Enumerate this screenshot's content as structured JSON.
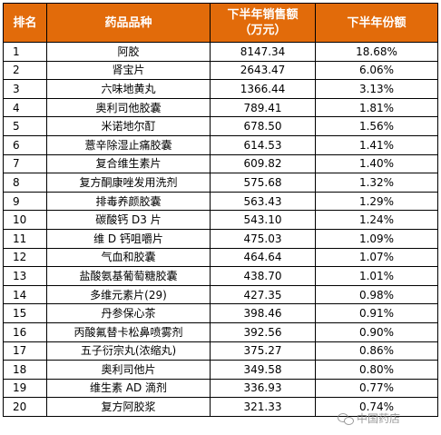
{
  "table": {
    "headers": {
      "rank": "排名",
      "name": "药品品种",
      "sales_line1": "下半年销售额",
      "sales_line2": "（万元）",
      "share": "下半年份额"
    },
    "rows": [
      {
        "rank": "1",
        "name": "阿胶",
        "sales": "8147.34",
        "share": "18.68%"
      },
      {
        "rank": "2",
        "name": "肾宝片",
        "sales": "2643.47",
        "share": "6.06%"
      },
      {
        "rank": "3",
        "name": "六味地黄丸",
        "sales": "1366.44",
        "share": "3.13%"
      },
      {
        "rank": "4",
        "name": "奥利司他胶囊",
        "sales": "789.41",
        "share": "1.81%"
      },
      {
        "rank": "5",
        "name": "米诺地尔酊",
        "sales": "678.50",
        "share": "1.56%"
      },
      {
        "rank": "6",
        "name": "薏辛除湿止痛胶囊",
        "sales": "614.53",
        "share": "1.41%"
      },
      {
        "rank": "7",
        "name": "复合维生素片",
        "sales": "609.82",
        "share": "1.40%"
      },
      {
        "rank": "8",
        "name": "复方酮康唑发用洗剂",
        "sales": "575.68",
        "share": "1.32%"
      },
      {
        "rank": "9",
        "name": "排毒养颜胶囊",
        "sales": "563.43",
        "share": "1.29%"
      },
      {
        "rank": "10",
        "name": "碳酸钙 D3 片",
        "sales": "543.10",
        "share": "1.24%"
      },
      {
        "rank": "11",
        "name": "维 D 钙咀嚼片",
        "sales": "475.03",
        "share": "1.09%"
      },
      {
        "rank": "12",
        "name": "气血和胶囊",
        "sales": "464.64",
        "share": "1.07%"
      },
      {
        "rank": "13",
        "name": "盐酸氨基葡萄糖胶囊",
        "sales": "438.70",
        "share": "1.01%"
      },
      {
        "rank": "14",
        "name": "多维元素片(29)",
        "sales": "427.35",
        "share": "0.98%"
      },
      {
        "rank": "15",
        "name": "丹参保心茶",
        "sales": "398.46",
        "share": "0.91%"
      },
      {
        "rank": "16",
        "name": "丙酸氟替卡松鼻喷雾剂",
        "sales": "392.56",
        "share": "0.90%"
      },
      {
        "rank": "17",
        "name": "五子衍宗丸(浓缩丸)",
        "sales": "375.27",
        "share": "0.86%"
      },
      {
        "rank": "18",
        "name": "奥利司他片",
        "sales": "349.58",
        "share": "0.80%"
      },
      {
        "rank": "19",
        "name": "维生素 AD 滴剂",
        "sales": "336.93",
        "share": "0.77%"
      },
      {
        "rank": "20",
        "name": "复方阿胶浆",
        "sales": "321.33",
        "share": "0.74%"
      }
    ]
  },
  "watermark": {
    "text": "中国药店",
    "icon": "wechat-icon"
  }
}
